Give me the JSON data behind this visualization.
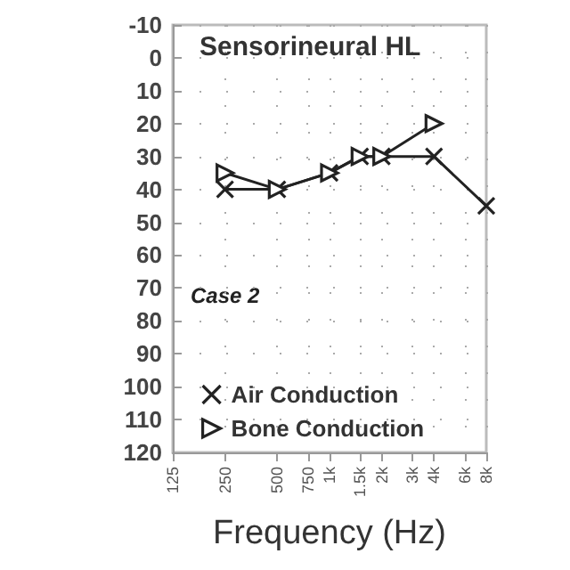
{
  "chart_data": {
    "type": "line",
    "title": "Sensorineural HL",
    "xlabel": "Frequency (Hz)",
    "annotations": [
      "Case 2"
    ],
    "x": [
      250,
      500,
      1000,
      1500,
      2000,
      4000,
      8000
    ],
    "series": [
      {
        "name": "Air Conduction",
        "color": "#222222",
        "marker": "cross",
        "values": [
          40,
          40,
          35,
          30,
          30,
          30,
          45
        ]
      },
      {
        "name": "Bone Conduction",
        "color": "#222222",
        "marker": "triangle",
        "x": [
          250,
          500,
          1000,
          1500,
          2000,
          4000
        ],
        "values": [
          35,
          40,
          35,
          30,
          30,
          20
        ]
      }
    ],
    "log": "x",
    "xlim": [
      125,
      8000
    ],
    "xticks": [
      125,
      250,
      500,
      {
        "value": 750,
        "label": "750"
      },
      {
        "value": 1000,
        "label": "1k"
      },
      {
        "value": 1500,
        "label": "1.5k"
      },
      {
        "value": 2000,
        "label": "2k"
      },
      {
        "value": 3000,
        "label": "3k"
      },
      {
        "value": 4000,
        "label": "4k"
      },
      {
        "value": 6000,
        "label": "6k"
      },
      {
        "value": 8000,
        "label": "8k"
      }
    ],
    "ylim": [
      120,
      -10
    ],
    "yticks": [
      -10,
      0,
      10,
      20,
      30,
      40,
      50,
      60,
      70,
      80,
      90,
      100,
      110,
      120
    ],
    "grid": true,
    "legend": "bottom left",
    "line_style": "solid"
  }
}
